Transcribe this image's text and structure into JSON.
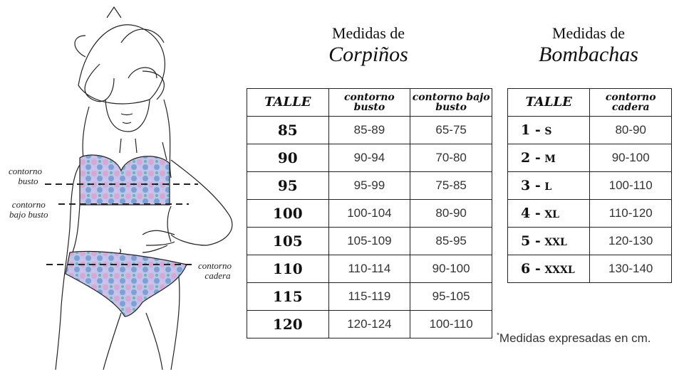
{
  "bras": {
    "title_line1": "Medidas de",
    "title_line2": "Corpiños",
    "headers": [
      "TALLE",
      "contorno busto",
      "contorno bajo busto"
    ],
    "rows": [
      [
        "85",
        "85-89",
        "65-75"
      ],
      [
        "90",
        "90-94",
        "70-80"
      ],
      [
        "95",
        "95-99",
        "75-85"
      ],
      [
        "100",
        "100-104",
        "80-90"
      ],
      [
        "105",
        "105-109",
        "85-95"
      ],
      [
        "110",
        "110-114",
        "90-100"
      ],
      [
        "115",
        "115-119",
        "95-105"
      ],
      [
        "120",
        "120-124",
        "100-110"
      ]
    ]
  },
  "panties": {
    "title_line1": "Medidas de",
    "title_line2": "Bombachas",
    "headers": [
      "TALLE",
      "contorno cadera"
    ],
    "rows": [
      {
        "num": "1 -",
        "size": "S",
        "cadera": "80-90"
      },
      {
        "num": "2 -",
        "size": "M",
        "cadera": "90-100"
      },
      {
        "num": "3 -",
        "size": "L",
        "cadera": "100-110"
      },
      {
        "num": "4 -",
        "size": "XL",
        "cadera": "110-120"
      },
      {
        "num": "5 -",
        "size": "XXL",
        "cadera": "120-130"
      },
      {
        "num": "6 -",
        "size": "XXXL",
        "cadera": "130-140"
      }
    ]
  },
  "footnote": {
    "mark": "*",
    "text": "Medidas expresadas en cm."
  },
  "illustration": {
    "labels": {
      "busto": [
        "contorno",
        "busto"
      ],
      "bajo_busto": [
        "contorno",
        "bajo busto"
      ],
      "cadera": [
        "contorno",
        "cadera"
      ]
    },
    "colors": {
      "pattern_pink": "#d9a6d6",
      "pattern_blue": "#7f9fd6",
      "pattern_teal": "#6fb3b0"
    }
  }
}
